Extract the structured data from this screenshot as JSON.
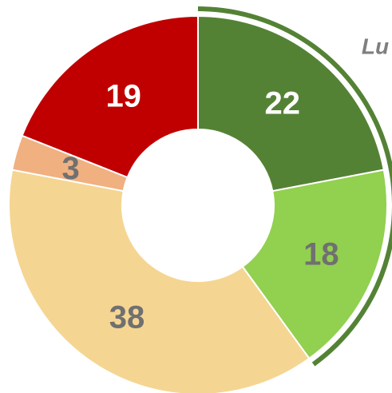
{
  "chart_data": {
    "type": "donut",
    "annotation": "Lu",
    "values": [
      22,
      18,
      38,
      3,
      19
    ],
    "colors": [
      "#548235",
      "#92d050",
      "#f5d592",
      "#f0b080",
      "#c00000"
    ],
    "label_colors": [
      "#ffffff",
      "#707070",
      "#707070",
      "#707070",
      "#ffffff"
    ]
  }
}
